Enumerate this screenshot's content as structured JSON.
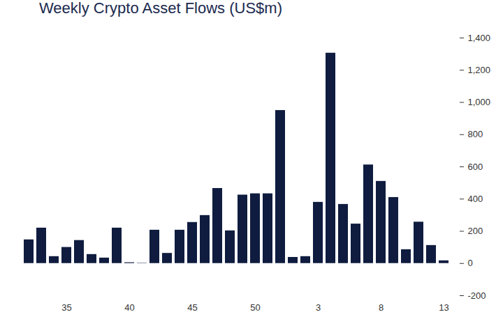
{
  "chart_data": {
    "type": "bar",
    "title": "Weekly Crypto Asset Flows (US$m)",
    "categories": [
      null,
      null,
      null,
      "35",
      null,
      null,
      null,
      null,
      "40",
      null,
      null,
      null,
      null,
      "45",
      null,
      null,
      null,
      null,
      "50",
      null,
      null,
      null,
      null,
      "3",
      null,
      null,
      null,
      null,
      "8",
      null,
      null,
      null,
      null,
      "13"
    ],
    "values": [
      147,
      220,
      43,
      100,
      143,
      56,
      34,
      220,
      5,
      2,
      207,
      63,
      207,
      255,
      298,
      466,
      203,
      425,
      433,
      433,
      950,
      38,
      43,
      380,
      1306,
      367,
      245,
      612,
      510,
      410,
      86,
      257,
      112,
      17
    ],
    "color": "#0f1c3f",
    "ylim": [
      -200,
      1400
    ],
    "yticks": [
      -200,
      0,
      200,
      400,
      600,
      800,
      {
        "value": 1000,
        "label": "1,000"
      },
      {
        "value": 1200,
        "label": "1,200"
      },
      {
        "value": 1400,
        "label": "1,400"
      }
    ],
    "grid": false
  }
}
